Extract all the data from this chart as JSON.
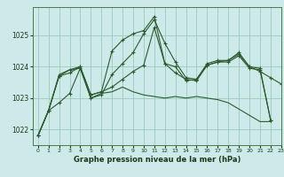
{
  "xlabel": "Graphe pression niveau de la mer (hPa)",
  "background_color": "#cde9e9",
  "grid_color": "#99ccbb",
  "line_color": "#2d5a2d",
  "ylim": [
    1021.5,
    1025.9
  ],
  "xlim": [
    -0.5,
    23
  ],
  "yticks": [
    1022,
    1023,
    1024,
    1025
  ],
  "xticks": [
    0,
    1,
    2,
    3,
    4,
    5,
    6,
    7,
    8,
    9,
    10,
    11,
    12,
    13,
    14,
    15,
    16,
    17,
    18,
    19,
    20,
    21,
    22,
    23
  ],
  "series": [
    {
      "x": [
        0,
        1,
        2,
        3,
        4,
        5,
        6,
        7,
        8,
        9,
        10,
        11,
        12,
        13,
        14,
        15,
        16,
        17,
        18,
        19,
        20,
        21,
        22,
        23
      ],
      "y": [
        1021.8,
        1022.6,
        1023.7,
        1023.8,
        1024.0,
        1023.1,
        1023.2,
        1024.5,
        1024.85,
        1025.05,
        1025.15,
        1025.6,
        1024.1,
        1024.0,
        1023.55,
        1023.6,
        1024.05,
        1024.15,
        1024.2,
        1024.45,
        1024.0,
        1023.95,
        1022.3,
        null
      ],
      "marker": true
    },
    {
      "x": [
        0,
        1,
        2,
        3,
        4,
        5,
        6,
        7,
        8,
        9,
        10,
        11,
        12,
        13,
        14,
        15,
        16,
        17,
        18,
        19,
        20,
        21,
        22,
        23
      ],
      "y": [
        1021.8,
        1022.6,
        1023.7,
        1023.9,
        1024.0,
        1023.1,
        1023.2,
        1023.35,
        1023.6,
        1023.85,
        1024.05,
        1025.25,
        1024.1,
        1023.8,
        1023.6,
        1023.55,
        1024.05,
        1024.15,
        1024.15,
        1024.35,
        1023.95,
        1023.9,
        1022.3,
        null
      ],
      "marker": true
    },
    {
      "x": [
        0,
        1,
        2,
        3,
        4,
        5,
        6,
        7,
        8,
        9,
        10,
        11,
        12,
        13,
        14,
        15,
        16,
        17,
        18,
        19,
        20,
        21,
        22,
        23
      ],
      "y": [
        1021.8,
        1022.6,
        1023.75,
        1023.9,
        1023.95,
        1023.0,
        1023.15,
        1023.2,
        1023.35,
        1023.2,
        1023.1,
        1023.05,
        1023.0,
        1023.05,
        1023.0,
        1023.05,
        1023.0,
        1022.95,
        1022.85,
        1022.65,
        1022.45,
        1022.25,
        1022.25,
        null
      ],
      "marker": false
    },
    {
      "x": [
        0,
        1,
        2,
        3,
        4,
        5,
        6,
        7,
        8,
        9,
        10,
        11,
        12,
        13,
        14,
        15,
        16,
        17,
        18,
        19,
        20,
        21,
        22,
        23
      ],
      "y": [
        1021.8,
        1022.6,
        1022.85,
        1023.15,
        1023.95,
        1023.0,
        1023.1,
        1023.75,
        1024.1,
        1024.45,
        1025.05,
        1025.5,
        1024.75,
        1024.15,
        1023.65,
        1023.6,
        1024.1,
        1024.2,
        1024.2,
        1024.4,
        1024.0,
        1023.85,
        1023.65,
        1023.45
      ],
      "marker": true
    }
  ]
}
